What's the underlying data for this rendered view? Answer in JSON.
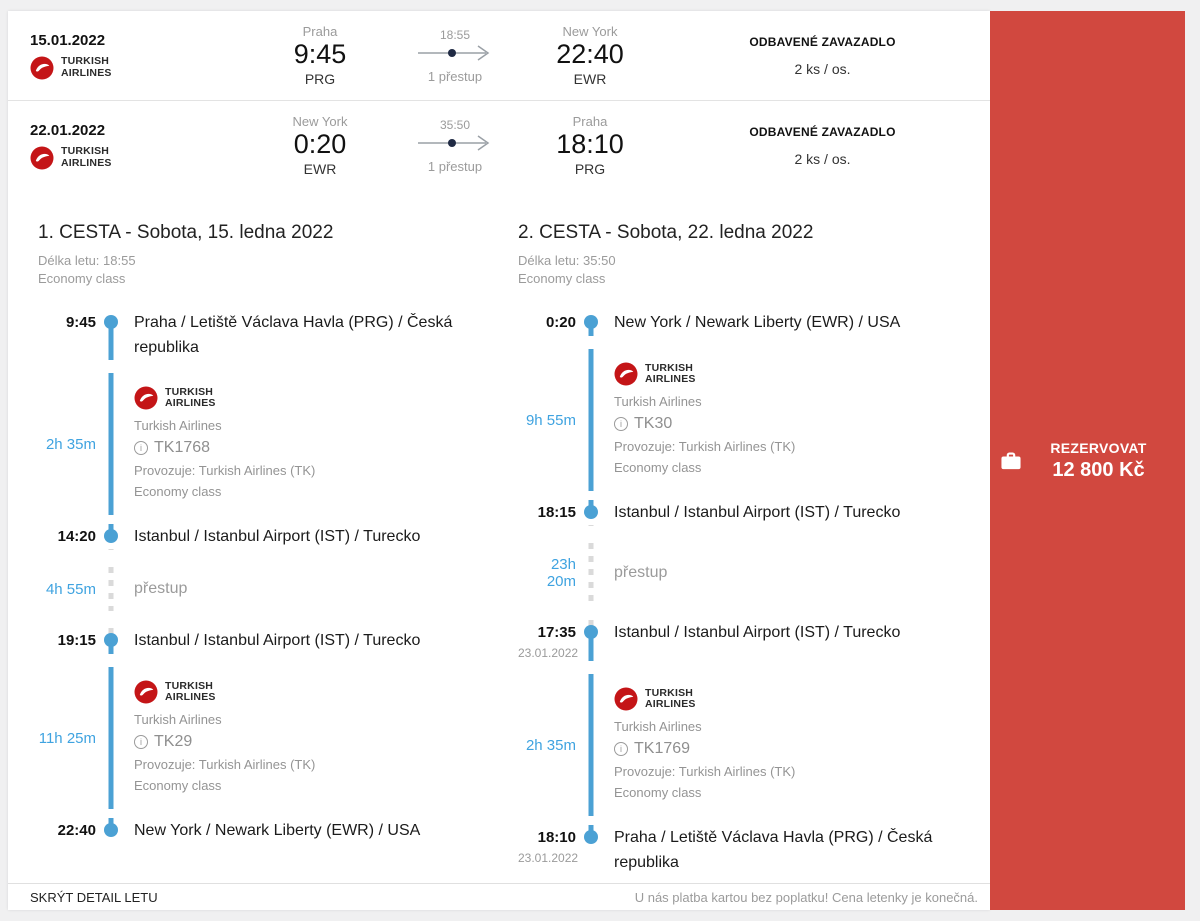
{
  "colors": {
    "accent_red": "#d1483f",
    "timeline_blue": "#4ba1d4",
    "duration_blue": "#3fa3e0",
    "airline_red": "#c41517"
  },
  "logo": {
    "line1": "TURKISH",
    "line2": "AIRLINES"
  },
  "icons": {
    "info": "i"
  },
  "reserve": {
    "label": "REZERVOVAT",
    "price": "12 800 Kč"
  },
  "footer": {
    "left": "SKRÝT DETAIL LETU",
    "right": "U nás platba kartou bez poplatku! Cena letenky je konečná."
  },
  "summary_rows": [
    {
      "date": "15.01.2022",
      "from": {
        "city": "Praha",
        "time": "9:45",
        "code": "PRG"
      },
      "duration": "18:55",
      "stops": "1 přestup",
      "to": {
        "city": "New York",
        "time": "22:40",
        "code": "EWR"
      },
      "baggage_label": "ODBAVENÉ ZAVAZADLO",
      "baggage_value": "2 ks / os."
    },
    {
      "date": "22.01.2022",
      "from": {
        "city": "New York",
        "time": "0:20",
        "code": "EWR"
      },
      "duration": "35:50",
      "stops": "1 přestup",
      "to": {
        "city": "Praha",
        "time": "18:10",
        "code": "PRG"
      },
      "baggage_label": "ODBAVENÉ ZAVAZADLO",
      "baggage_value": "2 ks / os."
    }
  ],
  "journeys": [
    {
      "title": "1. CESTA - Sobota, 15. ledna 2022",
      "duration_label": "Délka letu: 18:55",
      "cabin": "Economy class",
      "timeline": [
        {
          "type": "stop",
          "time": "9:45",
          "location": "Praha / Letiště Václava Havla (PRG) / Česká republika"
        },
        {
          "type": "flight",
          "duration": "2h 35m",
          "airline": "Turkish Airlines",
          "flight_no": "TK1768",
          "operated_by": "Provozuje: Turkish Airlines (TK)",
          "cabin": "Economy class"
        },
        {
          "type": "stop",
          "time": "14:20",
          "location": "Istanbul / Istanbul Airport (IST) / Turecko"
        },
        {
          "type": "layover",
          "duration": "4h 55m",
          "label": "přestup"
        },
        {
          "type": "stop",
          "time": "19:15",
          "location": "Istanbul / Istanbul Airport (IST) / Turecko"
        },
        {
          "type": "flight",
          "duration": "11h 25m",
          "airline": "Turkish Airlines",
          "flight_no": "TK29",
          "operated_by": "Provozuje: Turkish Airlines (TK)",
          "cabin": "Economy class"
        },
        {
          "type": "stop",
          "time": "22:40",
          "location": "New York / Newark Liberty (EWR) / USA"
        }
      ]
    },
    {
      "title": "2. CESTA - Sobota, 22. ledna 2022",
      "duration_label": "Délka letu: 35:50",
      "cabin": "Economy class",
      "timeline": [
        {
          "type": "stop",
          "time": "0:20",
          "location": "New York / Newark Liberty (EWR) / USA"
        },
        {
          "type": "flight",
          "duration": "9h 55m",
          "airline": "Turkish Airlines",
          "flight_no": "TK30",
          "operated_by": "Provozuje: Turkish Airlines (TK)",
          "cabin": "Economy class"
        },
        {
          "type": "stop",
          "time": "18:15",
          "location": "Istanbul / Istanbul Airport (IST) / Turecko"
        },
        {
          "type": "layover",
          "duration": "23h 20m",
          "label": "přestup"
        },
        {
          "type": "stop",
          "time": "17:35",
          "date": "23.01.2022",
          "location": "Istanbul / Istanbul Airport (IST) / Turecko"
        },
        {
          "type": "flight",
          "duration": "2h 35m",
          "airline": "Turkish Airlines",
          "flight_no": "TK1769",
          "operated_by": "Provozuje: Turkish Airlines (TK)",
          "cabin": "Economy class"
        },
        {
          "type": "stop",
          "time": "18:10",
          "date": "23.01.2022",
          "location": "Praha / Letiště Václava Havla (PRG) / Česká republika"
        }
      ]
    }
  ]
}
